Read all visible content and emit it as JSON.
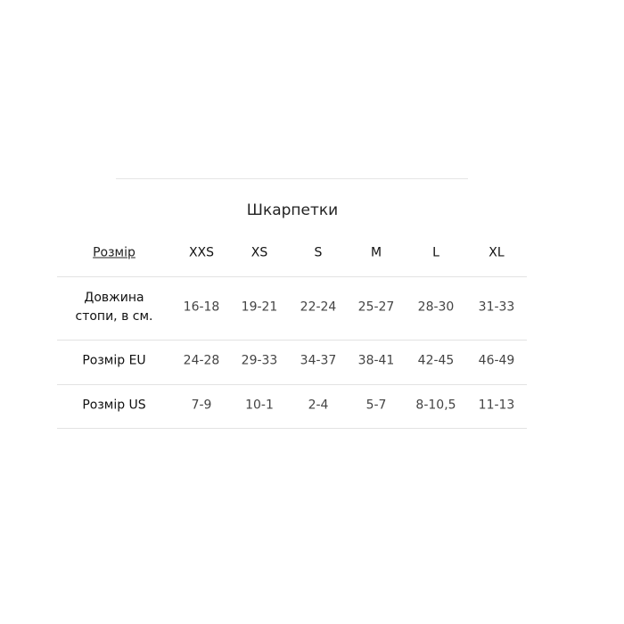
{
  "title": "Шкарпетки",
  "table": {
    "header_link": "Розмір",
    "sizes": [
      "XXS",
      "XS",
      "S",
      "M",
      "L",
      "XL"
    ],
    "rows": [
      {
        "label_line1": "Довжина",
        "label_line2": "стопи, в см.",
        "values": [
          "16-18",
          "19-21",
          "22-24",
          "25-27",
          "28-30",
          "31-33"
        ]
      },
      {
        "label_line1": "Розмір EU",
        "values": [
          "24-28",
          "29-33",
          "34-37",
          "38-41",
          "42-45",
          "46-49"
        ]
      },
      {
        "label_line1": "Розмір US",
        "values": [
          "7-9",
          "10-1",
          "2-4",
          "5-7",
          "8-10,5",
          "11-13"
        ]
      }
    ]
  }
}
